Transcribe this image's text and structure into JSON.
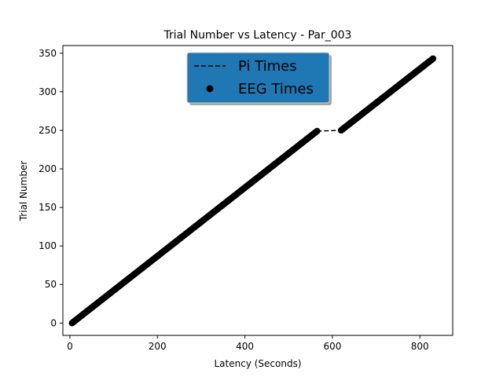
{
  "chart_data": {
    "type": "scatter",
    "title": "Trial Number vs Latency -  Par_003",
    "xlabel": "Latency (Seconds)",
    "ylabel": "Trial Number",
    "xlim": [
      -16,
      875
    ],
    "ylim": [
      -16,
      360
    ],
    "xticks": [
      0,
      200,
      400,
      600,
      800
    ],
    "yticks": [
      0,
      50,
      100,
      150,
      200,
      250,
      300,
      350
    ],
    "grid": false,
    "legend": {
      "placement": "upper-center",
      "background": "#1f77b4",
      "entries": [
        {
          "label": "Pi Times",
          "marker": "dashed-line"
        },
        {
          "label": "EEG Times",
          "marker": "filled-circle"
        }
      ]
    },
    "series": [
      {
        "name": "Pi Times",
        "style": "dashed",
        "color": "#000000",
        "points": [
          [
            5,
            0
          ],
          [
            565,
            249
          ],
          [
            620,
            250
          ],
          [
            830,
            343
          ]
        ]
      },
      {
        "name": "EEG Times",
        "style": "markers",
        "color": "#000000",
        "segments": [
          {
            "x_start": 5,
            "y_start": 0,
            "x_end": 565,
            "y_end": 249,
            "count": 250
          },
          {
            "x_start": 620,
            "y_start": 250,
            "x_end": 830,
            "y_end": 343,
            "count": 94
          }
        ]
      }
    ]
  }
}
